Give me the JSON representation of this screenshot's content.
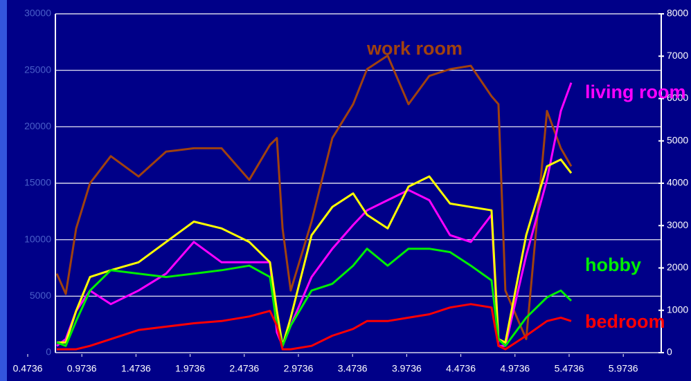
{
  "chart_data": {
    "type": "line",
    "background": "#000088",
    "x": [
      0.742,
      0.825,
      0.921,
      1.049,
      1.241,
      1.497,
      1.752,
      2.008,
      2.264,
      2.52,
      2.711,
      2.775,
      2.827,
      2.903,
      3.095,
      3.287,
      3.479,
      3.607,
      3.798,
      3.99,
      4.182,
      4.374,
      4.566,
      4.757,
      4.821,
      4.885,
      5.077,
      5.269,
      5.397,
      5.493
    ],
    "series": [
      {
        "name": "work room",
        "color": "#a0420f",
        "values": [
          7000,
          5200,
          11000,
          15000,
          17400,
          15600,
          17800,
          18100,
          18100,
          15300,
          18400,
          19000,
          11000,
          5500,
          11600,
          19000,
          22000,
          25100,
          26300,
          22000,
          24500,
          25100,
          25400,
          22700,
          22000,
          5500,
          1200,
          21400,
          18100,
          16500
        ]
      },
      {
        "name": "living room",
        "color": "#ff00ff",
        "values": [
          600,
          1200,
          3700,
          5500,
          4300,
          5500,
          7000,
          9800,
          8000,
          8000,
          8000,
          1800,
          600,
          2400,
          6700,
          9200,
          11300,
          12600,
          13500,
          14400,
          13500,
          10400,
          9800,
          12200,
          600,
          600,
          8600,
          15300,
          21400,
          23900
        ]
      },
      {
        "color": "#ffff00",
        "values": [
          900,
          900,
          3700,
          6700,
          7300,
          8000,
          9800,
          11600,
          11000,
          9800,
          8000,
          3700,
          600,
          3100,
          10400,
          12900,
          14100,
          12200,
          11000,
          14700,
          15600,
          13200,
          12900,
          12600,
          1200,
          900,
          10400,
          16500,
          17100,
          15900
        ]
      },
      {
        "name": "hobby",
        "color": "#00ee00",
        "values": [
          900,
          600,
          2800,
          5500,
          7300,
          7000,
          6700,
          7000,
          7300,
          7700,
          6700,
          2400,
          600,
          2400,
          5500,
          6100,
          7700,
          9200,
          7700,
          9200,
          9200,
          8900,
          7700,
          6400,
          1200,
          600,
          3100,
          4900,
          5500,
          4600
        ]
      },
      {
        "name": "bedroom",
        "color": "#ff0000",
        "values": [
          300,
          300,
          300,
          600,
          1200,
          2000,
          2300,
          2600,
          2800,
          3200,
          3700,
          2400,
          300,
          300,
          600,
          1500,
          2100,
          2800,
          2800,
          3100,
          3400,
          4000,
          4300,
          4000,
          600,
          300,
          1500,
          2800,
          3100,
          2800
        ]
      }
    ],
    "xlim": [
      0.7294,
      6.3241
    ],
    "xticks": [
      0.4736,
      0.9736,
      1.4736,
      1.9736,
      2.4736,
      2.9736,
      3.4736,
      3.9736,
      4.4736,
      4.9736,
      5.4736,
      5.9736
    ],
    "ylim": [
      0,
      30000
    ],
    "yticks": [
      0,
      5000,
      10000,
      15000,
      20000,
      25000,
      30000
    ],
    "y2lim": [
      0,
      8000
    ],
    "y2ticks": [
      0,
      1000,
      2000,
      3000,
      4000,
      5000,
      6000,
      7000,
      8000
    ],
    "grid": true
  }
}
